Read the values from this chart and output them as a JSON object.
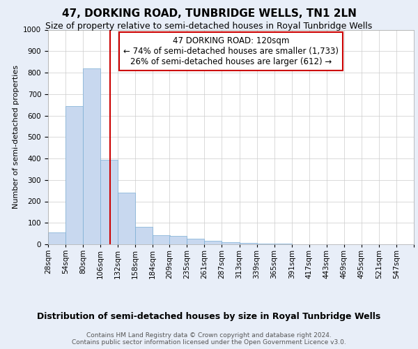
{
  "title": "47, DORKING ROAD, TUNBRIDGE WELLS, TN1 2LN",
  "subtitle": "Size of property relative to semi-detached houses in Royal Tunbridge Wells",
  "xlabel": "Distribution of semi-detached houses by size in Royal Tunbridge Wells",
  "ylabel": "Number of semi-detached properties",
  "bin_labels": [
    "28sqm",
    "54sqm",
    "80sqm",
    "106sqm",
    "132sqm",
    "158sqm",
    "184sqm",
    "209sqm",
    "235sqm",
    "261sqm",
    "287sqm",
    "313sqm",
    "339sqm",
    "365sqm",
    "391sqm",
    "417sqm",
    "443sqm",
    "469sqm",
    "495sqm",
    "521sqm",
    "547sqm"
  ],
  "bin_edges": [
    28,
    54,
    80,
    106,
    132,
    158,
    184,
    209,
    235,
    261,
    287,
    313,
    339,
    365,
    391,
    417,
    443,
    469,
    495,
    521,
    547
  ],
  "bar_heights": [
    55,
    645,
    820,
    395,
    240,
    82,
    42,
    38,
    25,
    15,
    10,
    5,
    3,
    2,
    1,
    1,
    0,
    0,
    0,
    1
  ],
  "bar_color": "#c8d8ef",
  "bar_edgecolor": "#7aadd4",
  "property_value": 120,
  "vline_color": "#cc0000",
  "annotation_line1": "47 DORKING ROAD: 120sqm",
  "annotation_line2": "← 74% of semi-detached houses are smaller (1,733)",
  "annotation_line3": "26% of semi-detached houses are larger (612) →",
  "annotation_box_color": "#ffffff",
  "annotation_box_edgecolor": "#cc0000",
  "footer_text": "Contains HM Land Registry data © Crown copyright and database right 2024.\nContains public sector information licensed under the Open Government Licence v3.0.",
  "ylim": [
    0,
    1000
  ],
  "background_color": "#e8eef8",
  "plot_background": "#ffffff",
  "title_fontsize": 11,
  "subtitle_fontsize": 9,
  "ylabel_fontsize": 8,
  "xlabel_fontsize": 9,
  "tick_fontsize": 7.5,
  "annotation_fontsize": 8.5,
  "footer_fontsize": 6.5
}
